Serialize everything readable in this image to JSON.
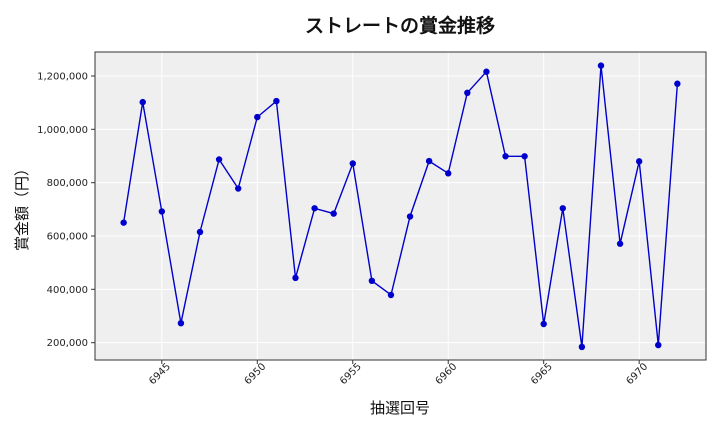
{
  "chart_data": {
    "type": "line",
    "title": "ストレートの賞金推移",
    "xlabel": "抽選回号",
    "ylabel": "賞金額（円）",
    "xlim": [
      6941.5,
      6973.5
    ],
    "ylim": [
      135000,
      1290000
    ],
    "xticks": [
      6945,
      6950,
      6955,
      6960,
      6965,
      6970
    ],
    "yticks": [
      200000,
      400000,
      600000,
      800000,
      1000000,
      1200000
    ],
    "ytick_labels": [
      "200,000",
      "400,000",
      "600,000",
      "800,000",
      "1,000,000",
      "1,200,000"
    ],
    "grid": true,
    "legend": "none",
    "series": [
      {
        "color": "#0000cc",
        "x": [
          6943,
          6944,
          6945,
          6946,
          6947,
          6948,
          6949,
          6950,
          6951,
          6952,
          6953,
          6954,
          6955,
          6956,
          6957,
          6958,
          6959,
          6960,
          6961,
          6962,
          6963,
          6964,
          6965,
          6966,
          6967,
          6968,
          6969,
          6970,
          6971,
          6972
        ],
        "y": [
          650000,
          1102000,
          692000,
          273000,
          615000,
          887000,
          778000,
          1046000,
          1106000,
          443000,
          704000,
          684000,
          872000,
          432000,
          379000,
          673000,
          881000,
          835000,
          1137000,
          1216000,
          899000,
          899000,
          270000,
          704000,
          184000,
          1239000,
          571000,
          880000,
          191000,
          1171000
        ]
      }
    ]
  },
  "colors": {
    "plot_background": "#efefef",
    "grid": "#ffffff",
    "line": "#0000cc",
    "marker": "#0000cc"
  }
}
